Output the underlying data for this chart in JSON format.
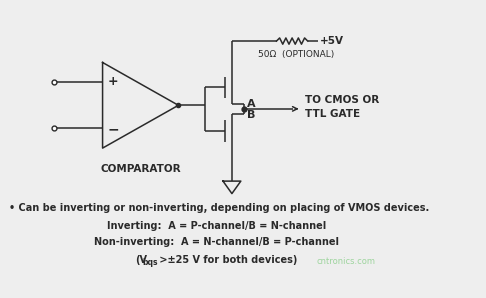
{
  "bg_color": "#eeeeee",
  "line_color": "#2a2a2a",
  "fig_width": 4.86,
  "fig_height": 2.98,
  "dpi": 100,
  "bullet_text": "• Can be inverting or non-inverting, depending on placing of VMOS devices.",
  "inverting_text": "Inverting:  A = P-channel/B = N-channel",
  "noninverting_text": "Non-inverting:  A = N-channel/B = P-channel",
  "vbqs_prefix": "(V",
  "vbqs_sub": "bqs",
  "vbqs_suffix": " >±25 V for both devices)",
  "comparator_label": "COMPARATOR",
  "plus_label": "+",
  "minus_label": "−",
  "label_A": "A",
  "label_B": "B",
  "resistor_label": "50Ω  (OPTIONAL)",
  "vplus_label": "+5V",
  "output_label": "TO CMOS OR\nTTL GATE",
  "watermark": "cntronics.com"
}
